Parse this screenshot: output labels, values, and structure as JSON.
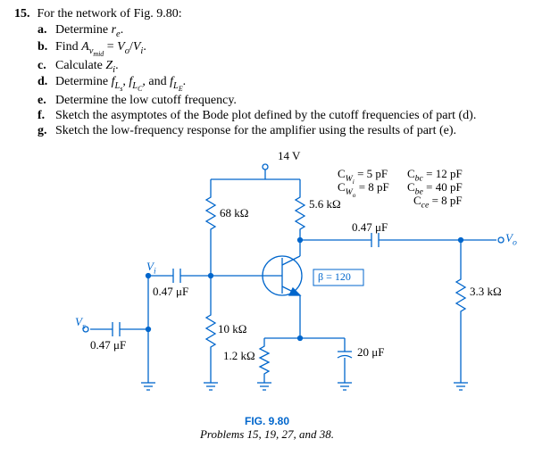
{
  "problem": {
    "number": "15.",
    "intro": "For the network of Fig. 9.80:",
    "parts": [
      {
        "letter": "a.",
        "html": "Determine <span class='ital'>r<span class='sub'>e</span></span>."
      },
      {
        "letter": "b.",
        "html": "Find <span class='ital'>A<span class='sub'>v<span class='sub'>mid</span></span></span> = <span class='ital'>V<span class='sub'>o</span></span>/<span class='ital'>V<span class='sub'>i</span></span>."
      },
      {
        "letter": "c.",
        "html": "Calculate <span class='ital'>Z<span class='sub'>i</span></span>."
      },
      {
        "letter": "d.",
        "html": "Determine <span class='ital'>f<span class='sub'>L<span class='sub'>s</span></span></span>, <span class='ital'>f<span class='sub'>L<span class='sub'>C</span></span></span>, and <span class='ital'>f<span class='sub'>L<span class='sub'>E</span></span></span>."
      },
      {
        "letter": "e.",
        "html": "Determine the low cutoff frequency."
      },
      {
        "letter": "f.",
        "html": "Sketch the asymptotes of the Bode plot defined by the cutoff frequencies of part (d)."
      },
      {
        "letter": "g.",
        "html": "Sketch the low-frequency response for the amplifier using the results of part (e)."
      }
    ]
  },
  "circuit": {
    "vcc": "14 V",
    "r_68k": "68 kΩ",
    "r_5_6k": "5.6 kΩ",
    "r_10k": "10 kΩ",
    "r_1_2k": "1.2 kΩ",
    "r_3_3k": "3.3 kΩ",
    "c_s": "0.47 μF",
    "c_i": "0.47 μF",
    "c_o": "0.47 μF",
    "c_e": "20 μF",
    "beta": "β = 120",
    "vi": "V<span class='sub ital'>i</span>",
    "vs": "V<span class='sub ital'>s</span>",
    "vo": "V<span class='sub ital'>o</span>",
    "caps": {
      "cwi": "C<span class='sub ital'>W<span class='sub'>i</span></span> = 5 pF",
      "cwo": "C<span class='sub ital'>W<span class='sub'>o</span></span> = 8 pF",
      "cbc": "C<span class='sub ital'>bc</span> = 12 pF",
      "cbe": "C<span class='sub ital'>be</span> = 40 pF",
      "cce": "C<span class='sub ital'>ce</span> = 8 pF"
    }
  },
  "figure": {
    "title": "FIG. 9.80",
    "subtitle": "Problems 15, 19, 27, and 38."
  },
  "colors": {
    "blue": "#0066cc",
    "black": "#000000"
  }
}
